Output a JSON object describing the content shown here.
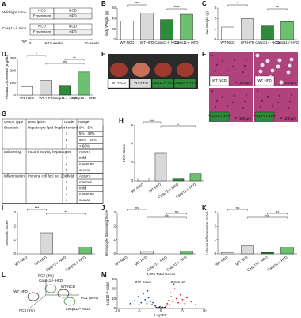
{
  "panel_a": {
    "letter": "A",
    "groups": [
      {
        "label": "Wild-type mice",
        "rows": [
          [
            "NCD",
            "NCD"
          ],
          [
            "Experiment",
            "HFD"
          ]
        ]
      },
      {
        "label": "Casp11-/- mice",
        "rows": [
          [
            "NCD",
            "NCD"
          ],
          [
            "Experiment",
            "HFD"
          ]
        ]
      }
    ],
    "age_label": "Age",
    "age_ticks": [
      "0",
      "8-10 weeks",
      "20 weeks"
    ]
  },
  "panel_b": {
    "letter": "B",
    "chart": {
      "type": "bar",
      "ylabel": "Body Weight (g)",
      "categories": [
        "WT-NCD",
        "WT-HFD",
        "Casp11-/- NCD",
        "Casp11-/- HFD"
      ],
      "values": [
        35,
        50,
        38,
        48
      ],
      "colors": [
        "#ffffff",
        "#d9d9d9",
        "#2e8b3a",
        "#6cc070"
      ],
      "ylim": [
        0,
        60
      ],
      "yticks": [
        0,
        20,
        40,
        60
      ],
      "significance": [
        "****",
        "****"
      ]
    }
  },
  "panel_c": {
    "letter": "C",
    "chart": {
      "type": "bar",
      "ylabel": "Liver Weight (g)",
      "categories": [
        "WT-NCD",
        "WT-HFD",
        "Casp11-/- NCD",
        "Casp11-/- HFD"
      ],
      "values": [
        1.2,
        2.0,
        1.3,
        1.7
      ],
      "colors": [
        "#ffffff",
        "#d9d9d9",
        "#2e8b3a",
        "#6cc070"
      ],
      "ylim": [
        0,
        3
      ],
      "yticks": [
        0,
        1,
        2,
        3
      ],
      "significance": [
        "*",
        "**"
      ]
    }
  },
  "panel_d": {
    "letter": "D",
    "chart": {
      "type": "bar",
      "ylabel": "Plasma Cholesterol (mg/dL)",
      "categories": [
        "WT-NCD",
        "WT-HFD",
        "Casp11-/- NCD",
        "Casp11-/- HFD"
      ],
      "values": [
        70,
        120,
        80,
        190
      ],
      "colors": [
        "#ffffff",
        "#d9d9d9",
        "#2e8b3a",
        "#6cc070"
      ],
      "ylim": [
        0,
        300
      ],
      "yticks": [
        0,
        100,
        200,
        300
      ],
      "significance": [
        "*",
        "**",
        "ns"
      ]
    }
  },
  "panel_e": {
    "letter": "E",
    "labels": [
      "WT-NCD",
      "WT-HFD",
      "Casp11-/- NCD",
      "Casp11-/- HFD"
    ]
  },
  "panel_f": {
    "letter": "F",
    "labels": [
      "WT NCD",
      "WT HFD",
      "Casp11-/- NCD",
      "Casp11-/- HFD"
    ],
    "scale_bar": "100 µm"
  },
  "panel_g": {
    "letter": "G",
    "header": [
      "Lesion Type",
      "Description",
      "Grade",
      "Range"
    ],
    "groups": [
      {
        "type": "Steatosis",
        "description": "Hepatocyte lipid droplet content",
        "rows": [
          [
            0,
            "0% - 5%"
          ],
          [
            1,
            "5% - 33%"
          ],
          [
            2,
            "33% - 66%"
          ],
          [
            3,
            "> 66%"
          ]
        ]
      },
      {
        "type": "Ballooning",
        "description": "Focal involving hepatocytes",
        "rows": [
          [
            0,
            "Absent"
          ],
          [
            1,
            "mild"
          ],
          [
            2,
            "moderate"
          ],
          [
            3,
            "severe"
          ]
        ]
      },
      {
        "type": "Inflammation",
        "description": "Immune cell foci per 20x field",
        "rows": [
          [
            0,
            "Absent"
          ],
          [
            1,
            "minimal"
          ],
          [
            2,
            "mild"
          ],
          [
            3,
            "moderate"
          ],
          [
            4,
            "severe"
          ]
        ]
      }
    ]
  },
  "panel_h": {
    "letter": "H",
    "chart": {
      "type": "bar",
      "ylabel": "NAS Score",
      "categories": [
        "WT-NCD",
        "WT-HFD",
        "Casp11-/- NCD",
        "Casp11-/- HFD"
      ],
      "values": [
        0.3,
        3,
        0.2,
        0.8
      ],
      "colors": [
        "#ffffff",
        "#d9d9d9",
        "#2e8b3a",
        "#6cc070"
      ],
      "ylim": [
        0,
        6
      ],
      "yticks": [
        0,
        2,
        4,
        6
      ],
      "significance": [
        "****",
        "*"
      ]
    }
  },
  "panel_i": {
    "letter": "I",
    "chart": {
      "type": "bar",
      "ylabel": "Steatosis Score",
      "categories": [
        "WT-NCD",
        "WT-HFD",
        "Casp11-/- NCD",
        "Casp11-/- HFD"
      ],
      "values": [
        0,
        1.5,
        0,
        0.5
      ],
      "colors": [
        "#ffffff",
        "#d9d9d9",
        "#2e8b3a",
        "#6cc070"
      ],
      "ylim": [
        0,
        3
      ],
      "yticks": [
        0,
        1,
        2,
        3
      ],
      "significance": [
        "***",
        "**"
      ]
    }
  },
  "panel_j": {
    "letter": "J",
    "chart": {
      "type": "bar",
      "ylabel": "Hepatocyte Ballooning Score",
      "categories": [
        "WT NCD",
        "WT HFD",
        "Casp11-/- NCD",
        "Casp11-/- HFD"
      ],
      "values": [
        0,
        0.2,
        0,
        0.2
      ],
      "colors": [
        "#ffffff",
        "#d9d9d9",
        "#2e8b3a",
        "#6cc070"
      ],
      "ylim": [
        0,
        3
      ],
      "yticks": [
        0,
        1,
        2,
        3
      ],
      "significance": [
        "ns",
        "ns",
        "ns"
      ]
    }
  },
  "panel_k": {
    "letter": "K",
    "chart": {
      "type": "bar",
      "ylabel": "Lobular Inflammation Score",
      "categories": [
        "WT NCD",
        "WT HFD",
        "Casp11-/- NCD",
        "Casp11-/- HFD"
      ],
      "values": [
        0.1,
        0.6,
        0.1,
        0.5
      ],
      "colors": [
        "#ffffff",
        "#d9d9d9",
        "#2e8b3a",
        "#6cc070"
      ],
      "ylim": [
        0,
        3
      ],
      "yticks": [
        0,
        1,
        2,
        3
      ],
      "significance": [
        "ns",
        "ns",
        "ns"
      ]
    }
  },
  "panel_l": {
    "letter": "L",
    "axes": [
      "PC2 (9%)",
      "PC1 (55%)",
      "PC3 (5%)"
    ],
    "groups": [
      "WT HFD",
      "Casp11-/- HFD",
      "WT NCD",
      "Casp11-/- NCD"
    ]
  },
  "panel_m": {
    "letter": "M",
    "chart": {
      "type": "scatter",
      "title": "3,895 Total Genes",
      "down_label": "877 Down",
      "up_label": "2,918 UP",
      "xlabel": "Log2FC",
      "ylabel": "-Log10 P-value",
      "xlim": [
        -10,
        10
      ],
      "xticks": [
        -10,
        -5,
        0,
        5,
        10
      ],
      "ylim": [
        0,
        30
      ],
      "yticks": [
        0,
        10,
        20,
        30
      ],
      "series": [
        {
          "color": "#1f3fbf",
          "x": [
            -6,
            -5.2,
            -4.5,
            -4,
            -3.6,
            -3.2,
            -2.8,
            -2.4,
            -2,
            -1.8,
            -1.5,
            -1.2,
            -3,
            -5,
            -7
          ],
          "y": [
            8,
            12,
            6,
            15,
            9,
            5,
            11,
            7,
            4,
            6,
            3,
            2.5,
            18,
            4,
            5
          ]
        },
        {
          "color": "#d62020",
          "x": [
            1.2,
            1.5,
            1.8,
            2,
            2.4,
            2.8,
            3.2,
            3.6,
            4,
            4.5,
            5,
            5.5,
            6,
            3,
            2.2,
            7,
            8
          ],
          "y": [
            3,
            5,
            8,
            4,
            12,
            7,
            20,
            10,
            6,
            14,
            9,
            5,
            11,
            25,
            16,
            7,
            4
          ]
        },
        {
          "color": "#222222",
          "x": [
            -1,
            -0.8,
            -0.5,
            -0.3,
            0,
            0.2,
            0.4,
            0.6,
            0.8,
            1,
            -0.6,
            0.3,
            0.1,
            -0.2
          ],
          "y": [
            1,
            0.5,
            0.8,
            1.2,
            0.3,
            0.6,
            1.1,
            0.4,
            0.9,
            1.3,
            0.2,
            1.5,
            0.7,
            1.8
          ]
        }
      ]
    }
  }
}
